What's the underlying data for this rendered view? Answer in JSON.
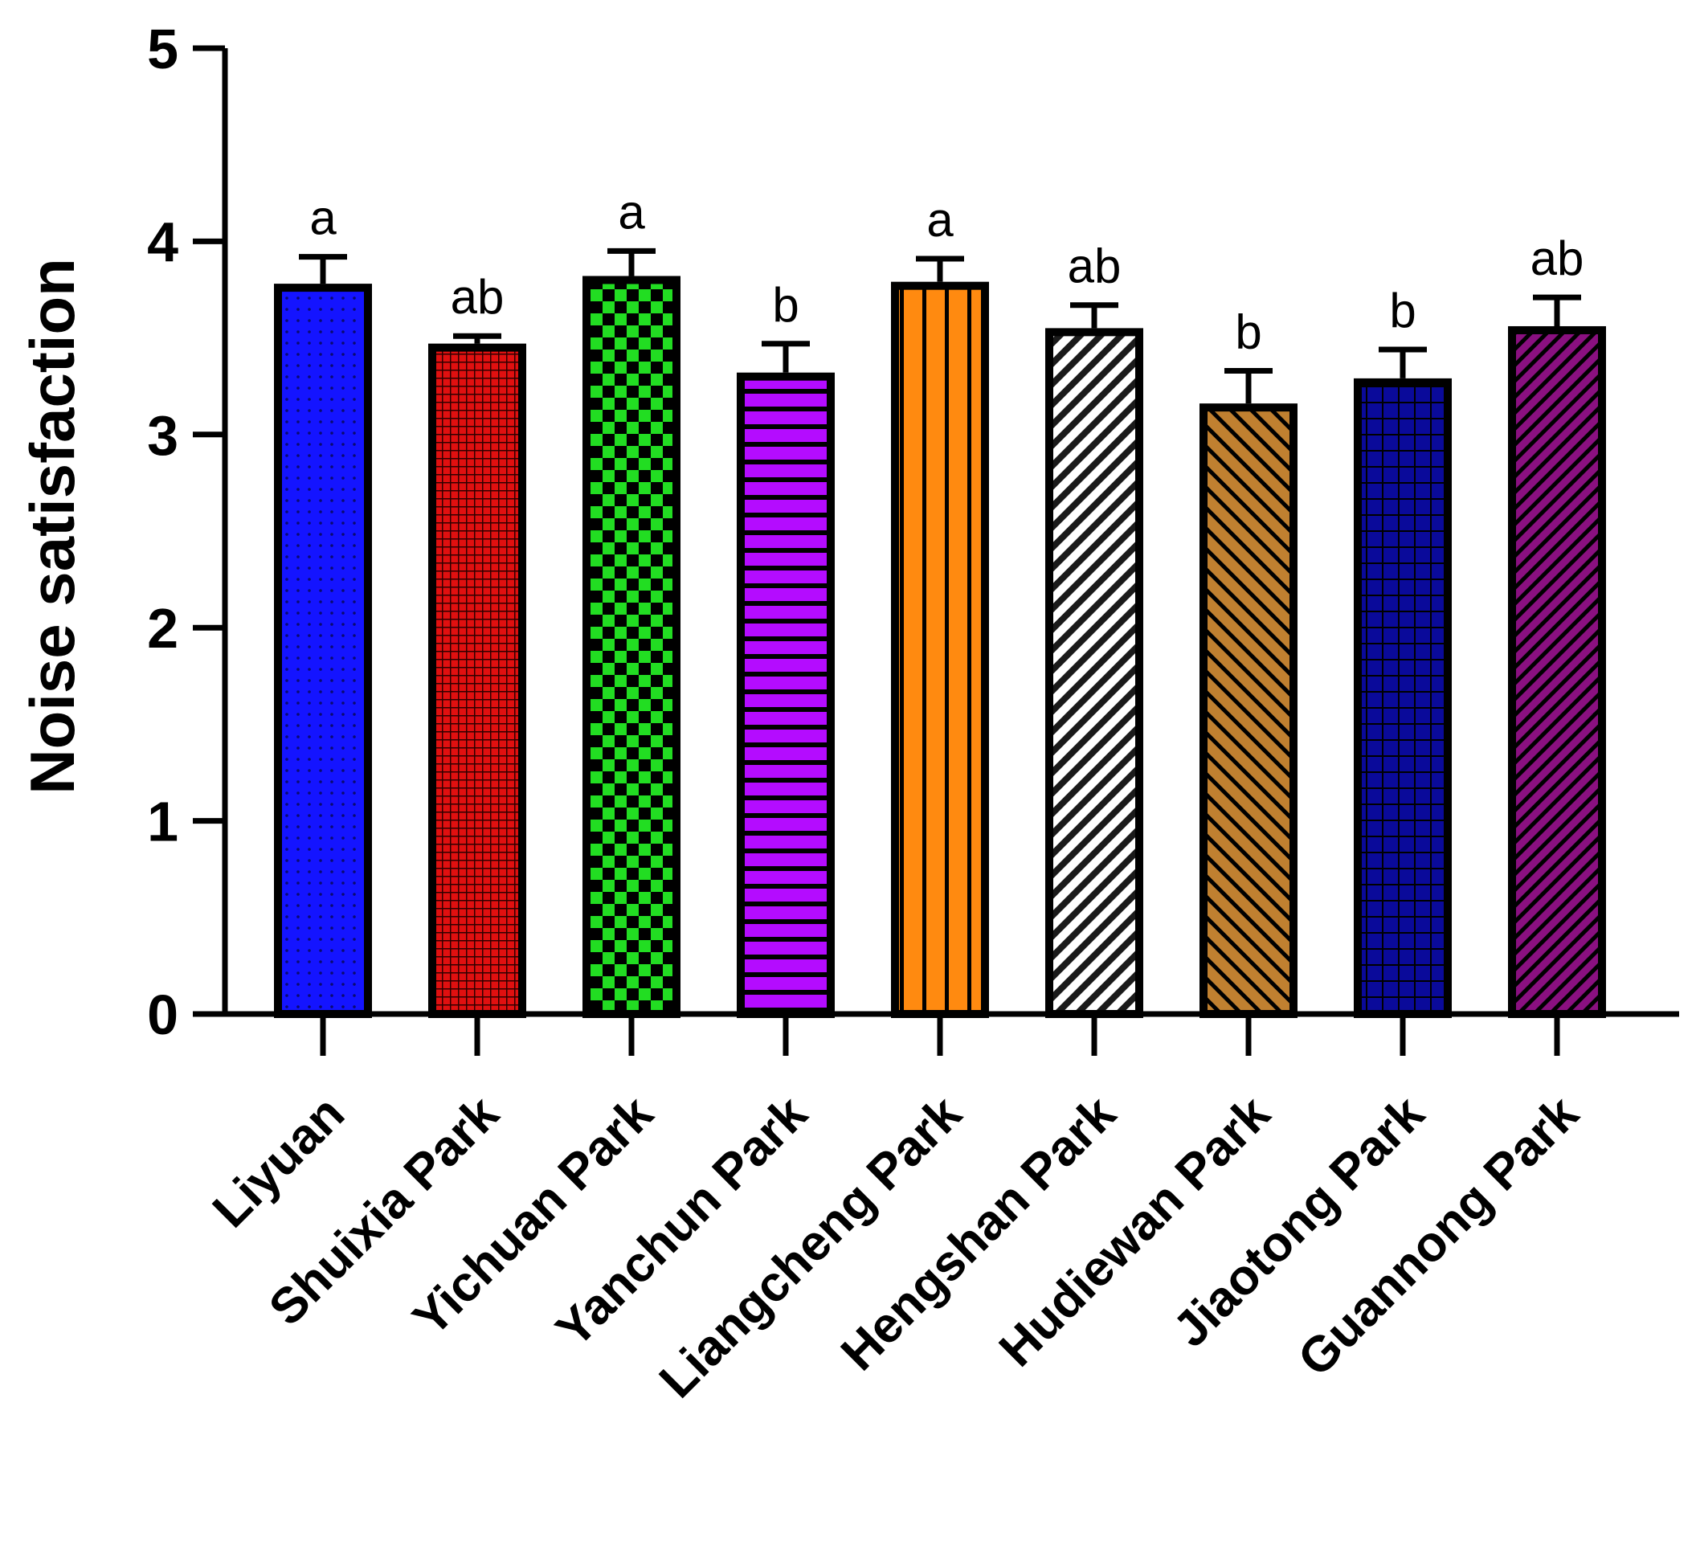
{
  "chart_data": {
    "type": "bar",
    "title": "",
    "xlabel": "",
    "ylabel": "Noise satisfaction",
    "ylim": [
      0,
      5
    ],
    "yticks": [
      0,
      1,
      2,
      3,
      4,
      5
    ],
    "grid": false,
    "legend": "none",
    "categories": [
      "Liyuan",
      "Shuixia Park",
      "Yichuan Park",
      "Yanchun Park",
      "Liangcheng Park",
      "Hengshan Park",
      "Hudiewan Park",
      "Jiaotong Park",
      "Guannong Park"
    ],
    "values": [
      3.76,
      3.45,
      3.8,
      3.3,
      3.77,
      3.53,
      3.14,
      3.27,
      3.54
    ],
    "errors": [
      0.16,
      0.06,
      0.15,
      0.17,
      0.14,
      0.14,
      0.19,
      0.17,
      0.17
    ],
    "significance": [
      "a",
      "ab",
      "a",
      "b",
      "a",
      "ab",
      "b",
      "b",
      "ab"
    ],
    "patterns": [
      "dots",
      "fine-grid",
      "checker",
      "horizontal-stripes",
      "vertical-stripes",
      "diagonal-up",
      "diagonal-down",
      "square-grid",
      "diagonal-up-dense"
    ],
    "colors": [
      "#1414ff",
      "#e01010",
      "#22dd22",
      "#b40cff",
      "#ff8a10",
      "#d0d0d0",
      "#c08030",
      "#0a0a9a",
      "#8a1080"
    ]
  }
}
